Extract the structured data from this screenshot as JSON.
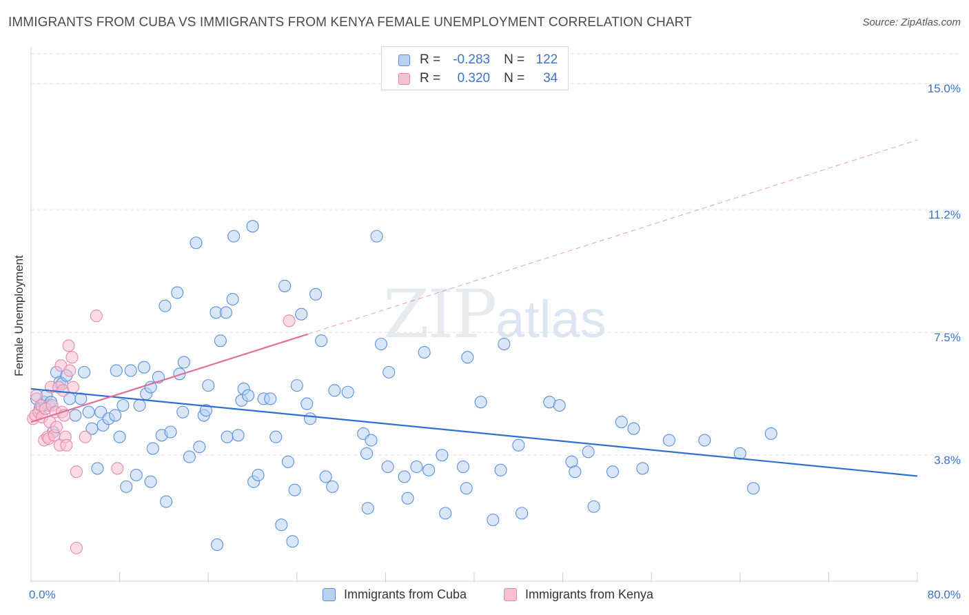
{
  "header": {
    "title": "IMMIGRANTS FROM CUBA VS IMMIGRANTS FROM KENYA FEMALE UNEMPLOYMENT CORRELATION CHART",
    "source": "Source: ZipAtlas.com"
  },
  "watermark": {
    "zip": "ZIP",
    "atlas": "atlas"
  },
  "legend": {
    "r_label": "R =",
    "n_label": "N =",
    "cuba": {
      "r": "-0.283",
      "n": "122"
    },
    "kenya": {
      "r": "0.320",
      "n": "34"
    }
  },
  "colors": {
    "cuba_fill": "#b8d1f3",
    "cuba_stroke": "#5b8fdb",
    "cuba_line": "#2f6fd0",
    "kenya_fill": "#f7c0d2",
    "kenya_stroke": "#e58aa8",
    "kenya_line": "#e0709a",
    "tick_text": "#3a73c8",
    "grid": "#e2e2e2"
  },
  "chart_data": {
    "type": "scatter",
    "title": "IMMIGRANTS FROM CUBA VS IMMIGRANTS FROM KENYA FEMALE UNEMPLOYMENT CORRELATION CHART",
    "xlabel": "",
    "ylabel": "Female Unemployment",
    "xlim": [
      0,
      80
    ],
    "ylim": [
      0,
      15.9
    ],
    "x_tick_labels": [
      "0.0%",
      "80.0%"
    ],
    "y_ticks": [
      3.8,
      7.5,
      11.2,
      15.0
    ],
    "y_tick_labels": [
      "3.8%",
      "7.5%",
      "11.2%",
      "15.0%"
    ],
    "grid": true,
    "legend_position": "top-center",
    "series": [
      {
        "name": "Immigrants from Cuba",
        "color": "#5b8fdb",
        "trend": {
          "x0": 0,
          "y0": 5.8,
          "x1": 80,
          "y1": 3.17
        },
        "points": [
          [
            0.5,
            5.5
          ],
          [
            0.8,
            5.2
          ],
          [
            1.0,
            5.3
          ],
          [
            1.2,
            5.4
          ],
          [
            1.4,
            5.6
          ],
          [
            1.6,
            5.3
          ],
          [
            1.8,
            5.4
          ],
          [
            2.0,
            4.5
          ],
          [
            2.3,
            6.3
          ],
          [
            2.6,
            6.0
          ],
          [
            2.8,
            5.95
          ],
          [
            3.2,
            6.2
          ],
          [
            3.5,
            5.5
          ],
          [
            4.0,
            5.0
          ],
          [
            4.5,
            5.5
          ],
          [
            4.8,
            6.3
          ],
          [
            5.2,
            5.1
          ],
          [
            5.5,
            4.6
          ],
          [
            6.0,
            3.4
          ],
          [
            6.3,
            5.1
          ],
          [
            6.5,
            4.7
          ],
          [
            7.0,
            4.9
          ],
          [
            7.6,
            5.0
          ],
          [
            7.7,
            6.35
          ],
          [
            8.0,
            4.35
          ],
          [
            8.3,
            5.3
          ],
          [
            8.6,
            2.85
          ],
          [
            9.0,
            6.35
          ],
          [
            9.5,
            3.2
          ],
          [
            9.8,
            5.3
          ],
          [
            10.2,
            6.45
          ],
          [
            10.4,
            5.65
          ],
          [
            10.8,
            5.85
          ],
          [
            10.8,
            3.0
          ],
          [
            11.0,
            4.0
          ],
          [
            11.5,
            6.15
          ],
          [
            11.8,
            4.4
          ],
          [
            12.1,
            8.3
          ],
          [
            12.2,
            2.4
          ],
          [
            12.6,
            4.5
          ],
          [
            13.2,
            8.7
          ],
          [
            13.4,
            6.25
          ],
          [
            13.7,
            5.1
          ],
          [
            13.8,
            6.6
          ],
          [
            14.3,
            3.75
          ],
          [
            14.9,
            10.2
          ],
          [
            15.2,
            4.05
          ],
          [
            15.6,
            5.0
          ],
          [
            15.8,
            5.15
          ],
          [
            16.0,
            5.9
          ],
          [
            16.7,
            8.1
          ],
          [
            16.8,
            1.1
          ],
          [
            17.1,
            7.25
          ],
          [
            17.6,
            8.1
          ],
          [
            17.7,
            4.35
          ],
          [
            18.2,
            8.5
          ],
          [
            18.3,
            10.4
          ],
          [
            18.7,
            4.4
          ],
          [
            19.0,
            5.45
          ],
          [
            19.2,
            5.8
          ],
          [
            19.6,
            5.6
          ],
          [
            20.0,
            10.7
          ],
          [
            20.1,
            3.0
          ],
          [
            20.5,
            3.2
          ],
          [
            21.0,
            5.5
          ],
          [
            21.6,
            5.5
          ],
          [
            22.1,
            4.35
          ],
          [
            22.6,
            1.7
          ],
          [
            22.9,
            8.9
          ],
          [
            23.2,
            3.6
          ],
          [
            23.6,
            1.2
          ],
          [
            23.8,
            2.75
          ],
          [
            24.0,
            5.9
          ],
          [
            24.4,
            8.05
          ],
          [
            24.9,
            5.35
          ],
          [
            25.2,
            4.9
          ],
          [
            25.7,
            8.65
          ],
          [
            26.2,
            7.25
          ],
          [
            26.6,
            3.15
          ],
          [
            27.2,
            2.85
          ],
          [
            27.4,
            5.75
          ],
          [
            28.6,
            5.7
          ],
          [
            30.0,
            4.45
          ],
          [
            30.3,
            3.85
          ],
          [
            30.4,
            2.2
          ],
          [
            30.7,
            4.25
          ],
          [
            31.2,
            10.4
          ],
          [
            31.6,
            7.15
          ],
          [
            32.2,
            3.45
          ],
          [
            32.3,
            6.3
          ],
          [
            33.7,
            3.15
          ],
          [
            34.0,
            2.5
          ],
          [
            34.8,
            3.45
          ],
          [
            35.5,
            6.9
          ],
          [
            35.9,
            3.35
          ],
          [
            37.1,
            3.8
          ],
          [
            37.4,
            2.05
          ],
          [
            39.0,
            3.45
          ],
          [
            39.3,
            2.8
          ],
          [
            39.4,
            6.75
          ],
          [
            40.6,
            5.4
          ],
          [
            41.7,
            1.85
          ],
          [
            42.4,
            3.35
          ],
          [
            42.7,
            7.15
          ],
          [
            44.0,
            4.1
          ],
          [
            44.3,
            2.05
          ],
          [
            46.8,
            5.4
          ],
          [
            47.7,
            5.3
          ],
          [
            48.8,
            3.6
          ],
          [
            49.1,
            3.3
          ],
          [
            50.3,
            3.9
          ],
          [
            50.8,
            2.25
          ],
          [
            52.5,
            3.3
          ],
          [
            53.3,
            4.8
          ],
          [
            54.4,
            4.6
          ],
          [
            55.2,
            3.4
          ],
          [
            57.6,
            4.25
          ],
          [
            60.8,
            4.25
          ],
          [
            64.0,
            3.85
          ],
          [
            65.2,
            2.8
          ],
          [
            66.8,
            4.45
          ]
        ]
      },
      {
        "name": "Immigrants from Kenya",
        "color": "#e58aa8",
        "trend": {
          "x0": 0,
          "y0": 4.8,
          "x1": 25,
          "y1": 7.45,
          "x_ext": 80,
          "y_ext": 13.3
        },
        "points": [
          [
            0.2,
            4.9
          ],
          [
            0.4,
            5.0
          ],
          [
            0.5,
            5.6
          ],
          [
            0.7,
            5.1
          ],
          [
            0.9,
            5.3
          ],
          [
            1.0,
            4.95
          ],
          [
            1.2,
            4.25
          ],
          [
            1.3,
            5.2
          ],
          [
            1.5,
            4.35
          ],
          [
            1.6,
            4.3
          ],
          [
            1.7,
            4.8
          ],
          [
            1.8,
            5.85
          ],
          [
            1.9,
            5.3
          ],
          [
            2.1,
            4.4
          ],
          [
            2.2,
            5.1
          ],
          [
            2.3,
            4.65
          ],
          [
            2.5,
            5.85
          ],
          [
            2.6,
            4.1
          ],
          [
            2.7,
            6.5
          ],
          [
            2.8,
            5.1
          ],
          [
            2.9,
            5.75
          ],
          [
            3.0,
            5.0
          ],
          [
            3.1,
            4.35
          ],
          [
            3.2,
            4.1
          ],
          [
            3.4,
            7.1
          ],
          [
            3.5,
            6.35
          ],
          [
            3.7,
            6.75
          ],
          [
            3.8,
            5.85
          ],
          [
            4.1,
            3.3
          ],
          [
            4.1,
            1.0
          ],
          [
            4.9,
            4.35
          ],
          [
            5.9,
            8.0
          ],
          [
            7.8,
            3.4
          ],
          [
            23.3,
            7.85
          ]
        ]
      }
    ]
  },
  "axes": {
    "ylabel": "Female Unemployment",
    "x_left": "0.0%",
    "x_right": "80.0%",
    "y_ticks": [
      "15.0%",
      "11.2%",
      "7.5%",
      "3.8%"
    ]
  },
  "bottom_legend": {
    "cuba": "Immigrants from Cuba",
    "kenya": "Immigrants from Kenya"
  }
}
